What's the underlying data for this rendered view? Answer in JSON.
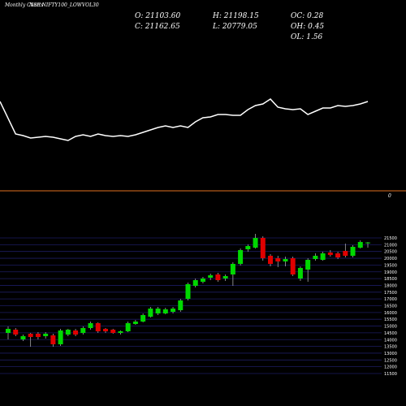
{
  "chart_data": {
    "type": "candlestick",
    "title": "NSE NIFTY100_LOWVOL30",
    "subtitle": "Monthly Charts",
    "info": [
      "O: 21103.60",
      "C: 21162.65",
      "H: 21198.15",
      "L: 20779.05",
      "OC: 0.28",
      "OH: 0.45",
      "OL: 1.56"
    ],
    "colors": {
      "up": "#00d800",
      "down": "#e00000",
      "line": "#ffffff",
      "ref": "#e07020",
      "grid": "#1c1c60"
    },
    "open": [
      14494,
      14734,
      14015,
      14434,
      14434,
      14254,
      14314,
      13656,
      14374,
      14674,
      14494,
      14853,
      15213,
      14793,
      14734,
      14494,
      14614,
      15153,
      15332,
      15692,
      15931,
      15931,
      16051,
      16171,
      17009,
      17967,
      18266,
      18566,
      18805,
      18506,
      18805,
      19584,
      20662,
      20781,
      21500,
      20183,
      20003,
      19764,
      20003,
      18506,
      19164,
      19943,
      19883,
      20422,
      20362,
      20542,
      20183,
      20781,
      21103.6
    ],
    "high": [
      14973,
      14853,
      14374,
      14494,
      14554,
      14554,
      14434,
      14793,
      14793,
      14793,
      14973,
      15332,
      15272,
      14853,
      14793,
      14674,
      15332,
      15452,
      15931,
      16410,
      16410,
      16350,
      16410,
      17009,
      18207,
      18506,
      18626,
      18865,
      18925,
      18805,
      19703,
      20722,
      21021,
      21799,
      21620,
      20302,
      20183,
      20123,
      20123,
      19404,
      20003,
      20362,
      20482,
      20602,
      20482,
      21081,
      20961,
      21320,
      21198.15
    ],
    "low": [
      14015,
      14254,
      13895,
      13476,
      14015,
      14075,
      13476,
      13536,
      14254,
      14254,
      14374,
      14734,
      14494,
      14494,
      14434,
      14374,
      14554,
      15093,
      15272,
      15632,
      15811,
      15871,
      15931,
      16051,
      16889,
      17847,
      18147,
      18386,
      18266,
      18326,
      17967,
      19464,
      20482,
      20722,
      19823,
      19404,
      19344,
      19404,
      18686,
      18326,
      18266,
      19823,
      19823,
      20123,
      19943,
      20063,
      20063,
      20722,
      20779.05
    ],
    "close": [
      14793,
      14374,
      14254,
      14195,
      14195,
      14434,
      13656,
      14674,
      14734,
      14374,
      14853,
      15213,
      14614,
      14614,
      14494,
      14614,
      15213,
      15332,
      15811,
      16290,
      16290,
      16231,
      16290,
      16889,
      18087,
      18386,
      18506,
      18745,
      18386,
      18686,
      19584,
      20602,
      20901,
      21500,
      20003,
      19584,
      19764,
      19943,
      18805,
      19284,
      19883,
      20183,
      20362,
      20242,
      20063,
      20183,
      20841,
      21200,
      21162.65
    ],
    "ylim": [
      11500,
      21800
    ],
    "yticks": [
      21500,
      21000,
      20500,
      20000,
      19500,
      19000,
      18500,
      18000,
      17500,
      17000,
      16500,
      16000,
      15500,
      15000,
      14500,
      14000,
      13500,
      13000,
      12500,
      12000,
      11500
    ],
    "indicator": {
      "values": [
        75,
        35,
        33,
        30,
        31,
        32,
        31,
        29,
        27,
        32,
        34,
        32,
        35,
        33,
        32,
        33,
        32,
        34,
        37,
        40,
        43,
        45,
        43,
        45,
        43,
        50,
        55,
        56,
        59,
        59,
        58,
        58,
        65,
        70,
        72,
        78,
        68,
        66,
        65,
        66,
        59,
        63,
        67,
        67,
        70,
        69,
        70,
        72,
        75
      ],
      "ylim": [
        0,
        100
      ]
    },
    "reference": {
      "yticks": [
        0
      ],
      "ylim": [
        -10,
        10
      ]
    }
  }
}
